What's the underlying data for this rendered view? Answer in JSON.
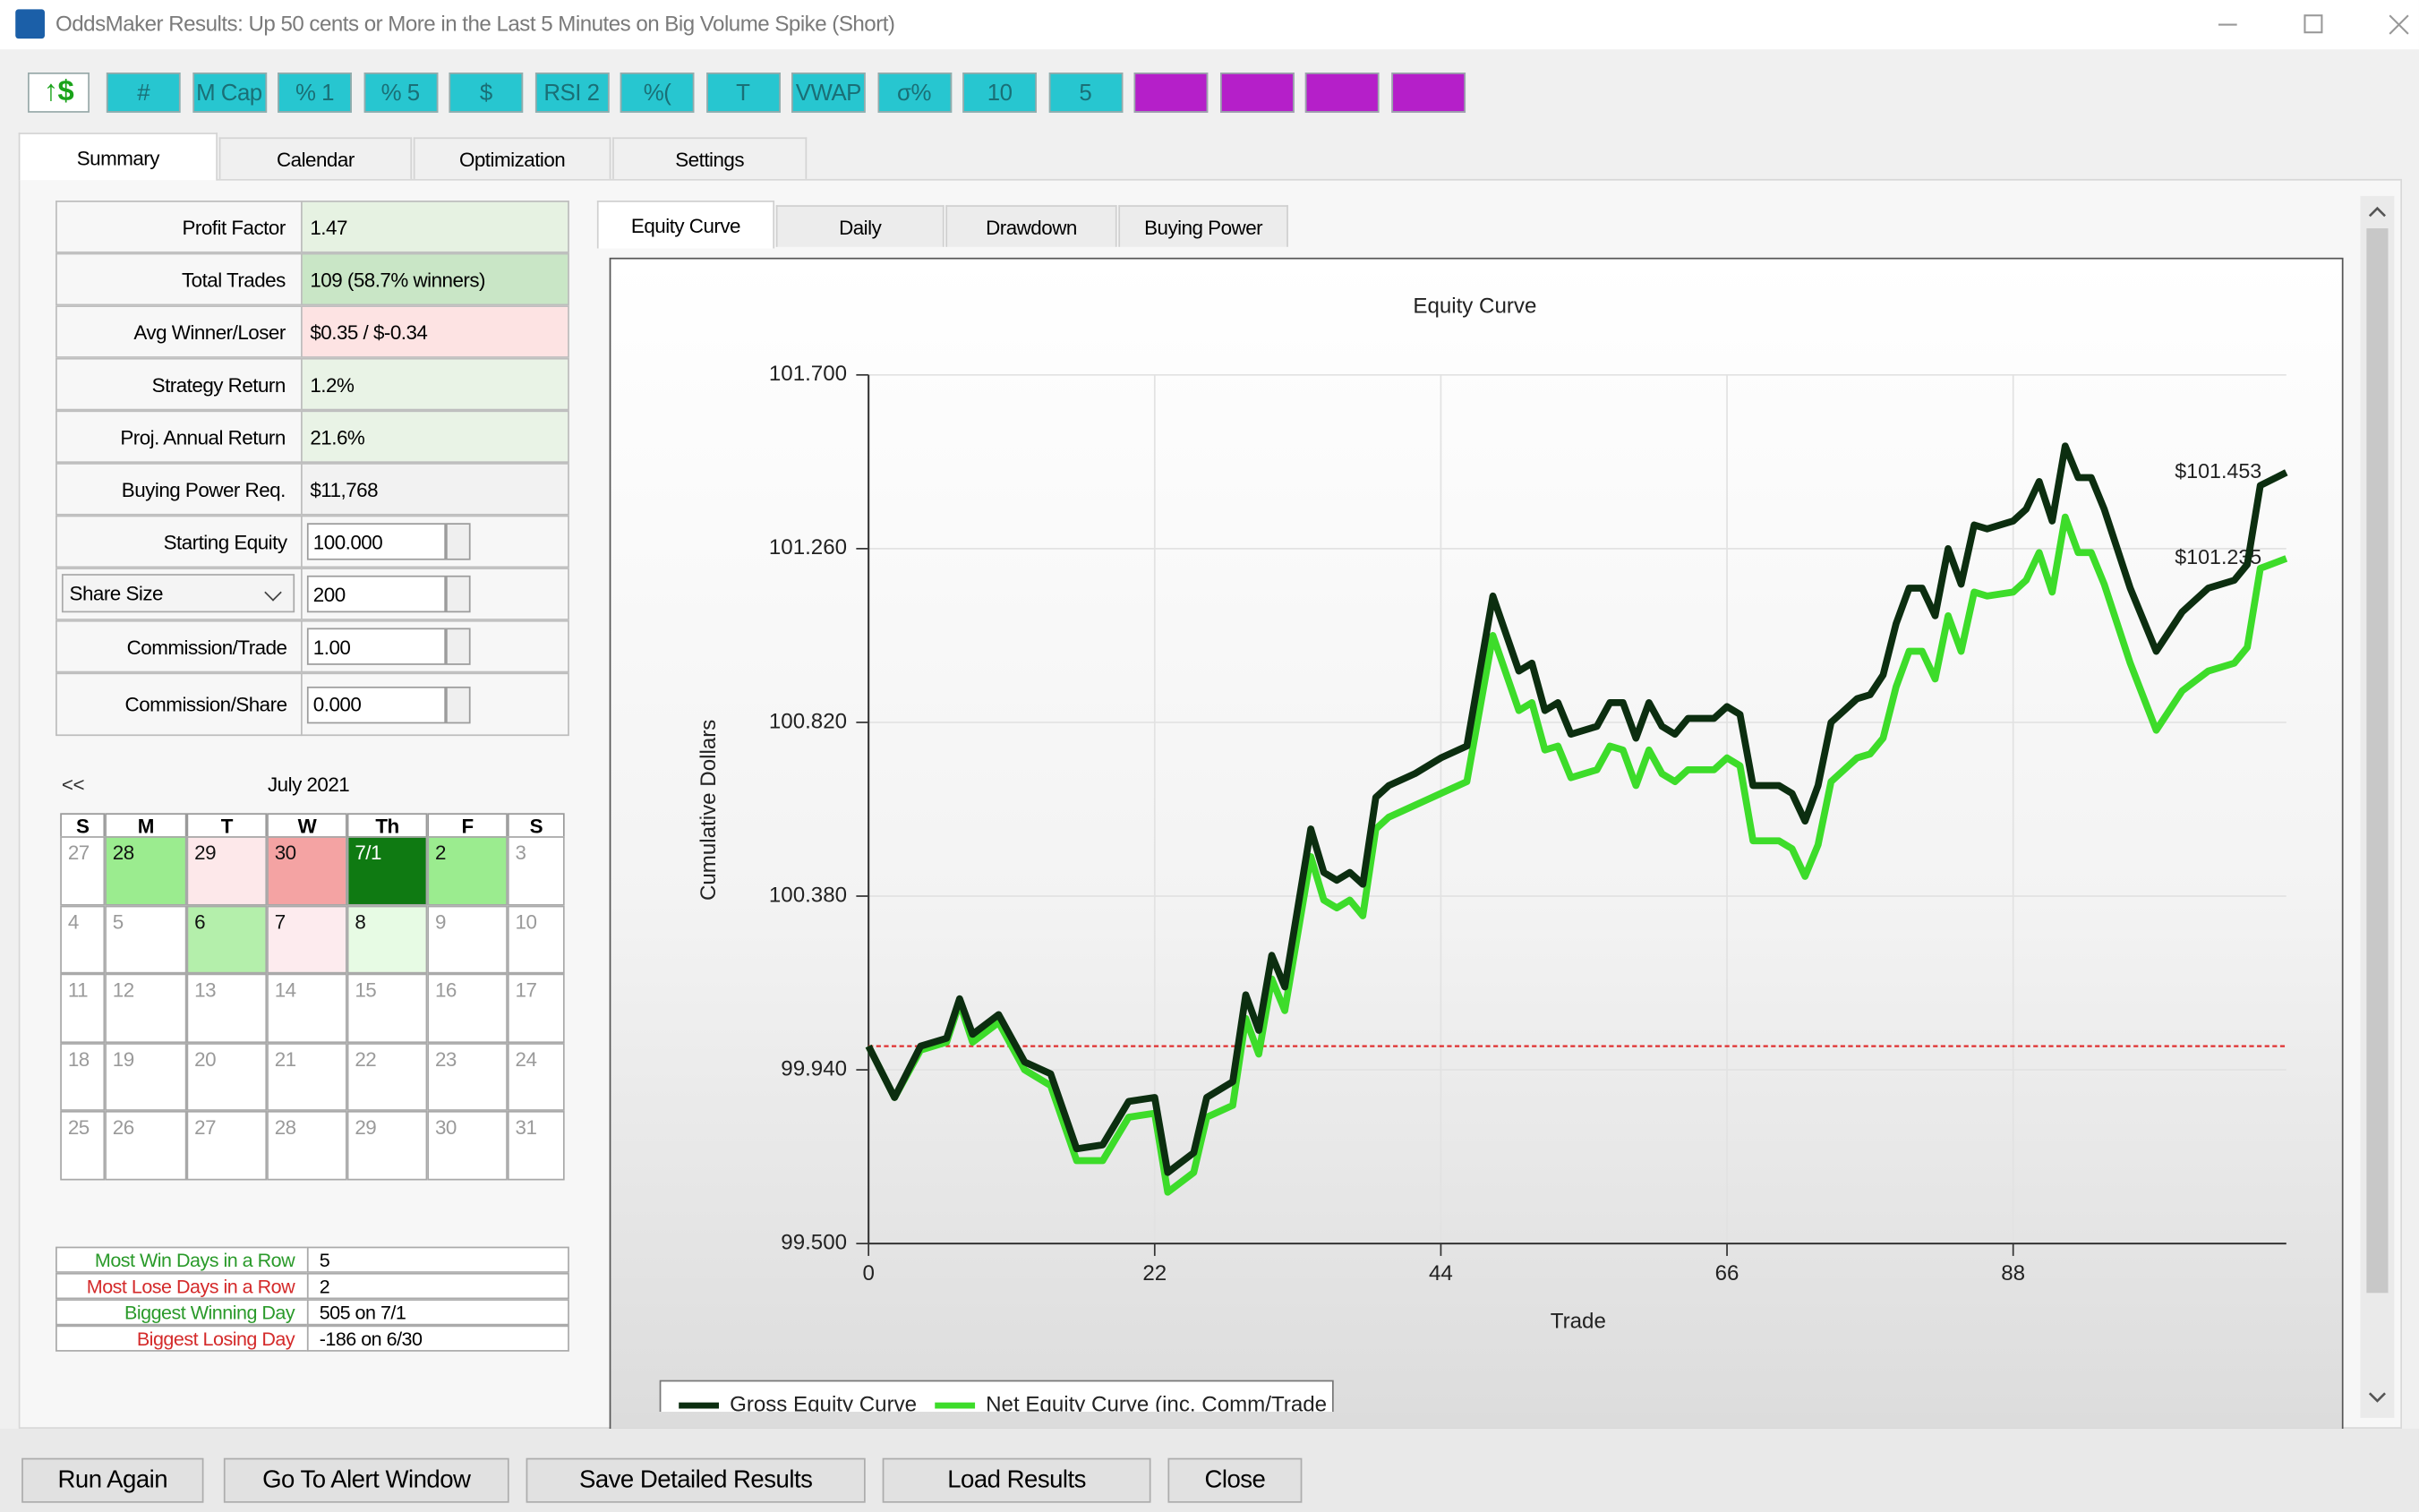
{
  "window": {
    "title": "OddsMaker Results: Up 50 cents or More in the Last 5 Minutes on Big Volume Spike (Short)"
  },
  "toolbar": {
    "buttons": [
      {
        "label": "↑$",
        "color": "#ffffff",
        "text_color": "#1aa31a"
      },
      {
        "label": "#",
        "color": "#27c6d0"
      },
      {
        "label": "M Cap",
        "color": "#27c6d0"
      },
      {
        "label": "% 1",
        "color": "#27c6d0"
      },
      {
        "label": "% 5",
        "color": "#27c6d0"
      },
      {
        "label": "$",
        "color": "#27c6d0"
      },
      {
        "label": "RSI 2",
        "color": "#27c6d0"
      },
      {
        "label": "%(",
        "color": "#27c6d0"
      },
      {
        "label": "T",
        "color": "#27c6d0"
      },
      {
        "label": "VWAP",
        "color": "#27c6d0"
      },
      {
        "label": "σ%",
        "color": "#27c6d0"
      },
      {
        "label": "10",
        "color": "#27c6d0"
      },
      {
        "label": "5",
        "color": "#27c6d0"
      },
      {
        "color": "#b51fc9"
      },
      {
        "color": "#b51fc9"
      },
      {
        "color": "#b51fc9"
      },
      {
        "color": "#b51fc9"
      }
    ]
  },
  "tabs": [
    "Summary",
    "Calendar",
    "Optimization",
    "Settings"
  ],
  "summary": {
    "stats": [
      {
        "label": "Profit Factor",
        "value": "1.47",
        "color": "#e6f2e2"
      },
      {
        "label": "Total Trades",
        "value": "109 (58.7% winners)",
        "color": "#c9e6c6"
      },
      {
        "label": "Avg Winner/Loser",
        "value": "$0.35 / $-0.34",
        "color": "#fde3e3"
      },
      {
        "label": "Strategy Return",
        "value": "1.2%",
        "color": "#e9f3e6"
      },
      {
        "label": "Proj. Annual Return",
        "value": "21.6%",
        "color": "#e9f3e6"
      },
      {
        "label": "Buying Power Req.",
        "value": "$11,768",
        "color": "#f2f2f2"
      }
    ],
    "inputs": [
      {
        "label": "Starting Equity",
        "value": "100.000"
      },
      {
        "label": "Share Size",
        "value": "200"
      },
      {
        "label": "Commission/Trade",
        "value": "1.00"
      },
      {
        "label": "Commission/Share",
        "value": "0.000"
      }
    ]
  },
  "calendar": {
    "nav": "<<",
    "month": "July 2021",
    "weekdays": [
      "S",
      "M",
      "T",
      "W",
      "Th",
      "F",
      "S"
    ],
    "weeks": [
      [
        {
          "day": "27",
          "color": "#ffffff",
          "muted": true
        },
        {
          "day": "28",
          "color": "#9bec8f",
          "muted": false
        },
        {
          "day": "29",
          "color": "#fde8ea",
          "muted": false
        },
        {
          "day": "30",
          "color": "#f4a3a3",
          "muted": false
        },
        {
          "day": "7/1",
          "color": "#0f7a12",
          "muted": false
        },
        {
          "day": "2",
          "color": "#9bec8f",
          "muted": false
        },
        {
          "day": "3",
          "color": "#ffffff",
          "muted": true
        }
      ],
      [
        {
          "day": "4",
          "color": "#ffffff",
          "muted": true
        },
        {
          "day": "5",
          "color": "#ffffff",
          "muted": true
        },
        {
          "day": "6",
          "color": "#b4efab",
          "muted": false
        },
        {
          "day": "7",
          "color": "#fdebee",
          "muted": false
        },
        {
          "day": "8",
          "color": "#e7fbe4",
          "muted": false
        },
        {
          "day": "9",
          "color": "#ffffff",
          "muted": true
        },
        {
          "day": "10",
          "color": "#ffffff",
          "muted": true
        }
      ],
      [
        {
          "day": "11",
          "color": "#ffffff",
          "muted": true
        },
        {
          "day": "12",
          "color": "#ffffff",
          "muted": true
        },
        {
          "day": "13",
          "color": "#ffffff",
          "muted": true
        },
        {
          "day": "14",
          "color": "#ffffff",
          "muted": true
        },
        {
          "day": "15",
          "color": "#ffffff",
          "muted": true
        },
        {
          "day": "16",
          "color": "#ffffff",
          "muted": true
        },
        {
          "day": "17",
          "color": "#ffffff",
          "muted": true
        }
      ],
      [
        {
          "day": "18",
          "color": "#ffffff",
          "muted": true
        },
        {
          "day": "19",
          "color": "#ffffff",
          "muted": true
        },
        {
          "day": "20",
          "color": "#ffffff",
          "muted": true
        },
        {
          "day": "21",
          "color": "#ffffff",
          "muted": true
        },
        {
          "day": "22",
          "color": "#ffffff",
          "muted": true
        },
        {
          "day": "23",
          "color": "#ffffff",
          "muted": true
        },
        {
          "day": "24",
          "color": "#ffffff",
          "muted": true
        }
      ],
      [
        {
          "day": "25",
          "color": "#ffffff",
          "muted": true
        },
        {
          "day": "26",
          "color": "#ffffff",
          "muted": true
        },
        {
          "day": "27",
          "color": "#ffffff",
          "muted": true
        },
        {
          "day": "28",
          "color": "#ffffff",
          "muted": true
        },
        {
          "day": "29",
          "color": "#ffffff",
          "muted": true
        },
        {
          "day": "30",
          "color": "#ffffff",
          "muted": true
        },
        {
          "day": "31",
          "color": "#ffffff",
          "muted": true
        }
      ]
    ]
  },
  "streaks": [
    {
      "label": "Most Win Days in a Row",
      "value": "5",
      "color": "#2a9a2a"
    },
    {
      "label": "Most Lose Days in a Row",
      "value": "2",
      "color": "#d42a2a"
    },
    {
      "label": "Biggest Winning Day",
      "value": "505 on 7/1",
      "color": "#2a9a2a"
    },
    {
      "label": "Biggest Losing Day",
      "value": "-186 on 6/30",
      "color": "#d42a2a"
    }
  ],
  "chart_tabs": [
    "Equity Curve",
    "Daily",
    "Drawdown",
    "Buying Power"
  ],
  "buttons": [
    "Run Again",
    "Go To Alert Window",
    "Save Detailed Results",
    "Load Results",
    "Close"
  ],
  "chart_data": {
    "type": "line",
    "title": "Equity Curve",
    "x_label": "Trade",
    "y_label": "Cumulative Dollars",
    "x": [
      0,
      2,
      4,
      6,
      7,
      8,
      10,
      12,
      14,
      16,
      18,
      20,
      22,
      23,
      25,
      26,
      28,
      29,
      30,
      31,
      32,
      34,
      35,
      36,
      37,
      38,
      39,
      40,
      42,
      44,
      46,
      48,
      50,
      51,
      52,
      53,
      54,
      56,
      57,
      58,
      59,
      60,
      61,
      62,
      63,
      65,
      66,
      67,
      68,
      70,
      71,
      72,
      73,
      74,
      75,
      76,
      77,
      78,
      79,
      80,
      81,
      82,
      83,
      84,
      85,
      86,
      88,
      89,
      90,
      91,
      92,
      93,
      94,
      95,
      97,
      99,
      101,
      103,
      105,
      106,
      107,
      109
    ],
    "series": [
      {
        "name": "Gross Equity Curve",
        "color": "#0c2e10",
        "values": [
          100.0,
          99.87,
          100.0,
          100.02,
          100.12,
          100.03,
          100.08,
          99.96,
          99.93,
          99.74,
          99.75,
          99.86,
          99.87,
          99.68,
          99.73,
          99.87,
          99.91,
          100.13,
          100.04,
          100.23,
          100.15,
          100.55,
          100.44,
          100.42,
          100.44,
          100.41,
          100.63,
          100.66,
          100.69,
          100.73,
          100.76,
          101.14,
          100.95,
          100.97,
          100.85,
          100.87,
          100.79,
          100.81,
          100.87,
          100.87,
          100.78,
          100.87,
          100.81,
          100.79,
          100.83,
          100.83,
          100.86,
          100.84,
          100.66,
          100.66,
          100.64,
          100.57,
          100.66,
          100.82,
          100.85,
          100.88,
          100.89,
          100.94,
          101.07,
          101.16,
          101.16,
          101.09,
          101.26,
          101.17,
          101.32,
          101.31,
          101.33,
          101.36,
          101.43,
          101.33,
          101.52,
          101.44,
          101.44,
          101.36,
          101.16,
          101.0,
          101.1,
          101.16,
          101.18,
          101.22,
          101.42,
          101.453
        ],
        "value_labels": [
          null,
          null,
          null,
          null,
          null,
          null,
          null,
          null,
          null,
          null,
          null,
          null,
          null,
          null,
          null,
          null,
          null,
          null,
          null,
          null,
          null,
          null,
          null,
          null,
          null,
          null,
          null,
          null,
          null,
          null,
          null,
          null,
          null,
          null,
          null,
          null,
          null,
          null,
          null,
          null,
          null,
          null,
          null,
          null,
          null,
          null,
          null,
          null,
          null,
          null,
          null,
          null,
          null,
          null,
          null,
          null,
          null,
          null,
          null,
          null,
          null,
          null,
          null,
          null,
          null,
          null,
          null,
          null,
          null,
          null,
          null,
          null,
          null,
          null,
          null,
          null,
          null,
          null,
          null,
          null,
          null,
          "$101.453"
        ]
      },
      {
        "name": "Net Equity Curve (inc. Comm/Trade",
        "color": "#3ddc2a",
        "values": [
          100.0,
          99.87,
          99.99,
          100.01,
          100.11,
          100.01,
          100.06,
          99.94,
          99.9,
          99.71,
          99.71,
          99.82,
          99.83,
          99.63,
          99.68,
          99.82,
          99.85,
          100.07,
          99.98,
          100.17,
          100.09,
          100.48,
          100.37,
          100.35,
          100.37,
          100.33,
          100.55,
          100.58,
          100.61,
          100.64,
          100.67,
          101.04,
          100.85,
          100.87,
          100.75,
          100.76,
          100.68,
          100.7,
          100.76,
          100.75,
          100.66,
          100.75,
          100.69,
          100.67,
          100.7,
          100.7,
          100.73,
          100.71,
          100.52,
          100.52,
          100.5,
          100.43,
          100.51,
          100.67,
          100.7,
          100.73,
          100.74,
          100.78,
          100.91,
          101.0,
          101.0,
          100.93,
          101.09,
          101.0,
          101.15,
          101.14,
          101.15,
          101.18,
          101.25,
          101.15,
          101.34,
          101.25,
          101.25,
          101.17,
          100.97,
          100.8,
          100.9,
          100.95,
          100.97,
          101.01,
          101.21,
          101.235
        ],
        "value_labels": [
          null,
          null,
          null,
          null,
          null,
          null,
          null,
          null,
          null,
          null,
          null,
          null,
          null,
          null,
          null,
          null,
          null,
          null,
          null,
          null,
          null,
          null,
          null,
          null,
          null,
          null,
          null,
          null,
          null,
          null,
          null,
          null,
          null,
          null,
          null,
          null,
          null,
          null,
          null,
          null,
          null,
          null,
          null,
          null,
          null,
          null,
          null,
          null,
          null,
          null,
          null,
          null,
          null,
          null,
          null,
          null,
          null,
          null,
          null,
          null,
          null,
          null,
          null,
          null,
          null,
          null,
          null,
          null,
          null,
          null,
          null,
          null,
          null,
          null,
          null,
          null,
          null,
          null,
          null,
          null,
          null,
          "$101.235"
        ]
      }
    ],
    "xlim": [
      0,
      109
    ],
    "ylim": [
      99.5,
      101.7
    ],
    "xticks": [
      0,
      22,
      44,
      66,
      88
    ],
    "yticks": [
      {
        "value": 99.5,
        "label": "99.500"
      },
      {
        "value": 99.94,
        "label": "99.940"
      },
      {
        "value": 100.38,
        "label": "100.380"
      },
      {
        "value": 100.82,
        "label": "100.820"
      },
      {
        "value": 101.26,
        "label": "101.260"
      },
      {
        "value": 101.7,
        "label": "101.700"
      }
    ],
    "baseline": 100,
    "baseline_color": "#e03030",
    "grid": true,
    "legend": "bottom-left"
  }
}
